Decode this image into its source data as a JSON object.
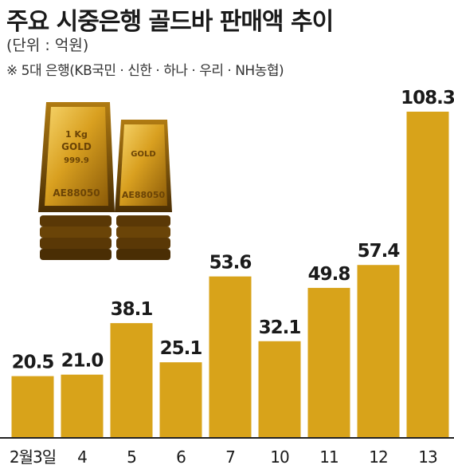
{
  "header": {
    "title": "주요 시중은행 골드바 판매액 추이",
    "unit": "(단위 : 억원)",
    "note": "※ 5대 은행(KB국민 · 신한 · 하나 · 우리 · NH농협)"
  },
  "colors": {
    "bar": "#D8A31A",
    "baseline": "#222222",
    "text": "#1a1a1a"
  },
  "illustration": {
    "icon": "gold-bars-icon",
    "bar_engraving": [
      "AE88050",
      "1 Kg",
      "GOLD",
      "999.9"
    ]
  },
  "chart_data": {
    "type": "bar",
    "title": "주요 시중은행 골드바 판매액 추이",
    "xlabel": "",
    "ylabel": "",
    "categories": [
      "2월3일",
      "4",
      "5",
      "6",
      "7",
      "10",
      "11",
      "12",
      "13"
    ],
    "values": [
      20.5,
      21.0,
      38.1,
      25.1,
      53.6,
      32.1,
      49.8,
      57.4,
      108.3
    ],
    "value_labels": [
      "20.5",
      "21.0",
      "38.1",
      "25.1",
      "53.6",
      "32.1",
      "49.8",
      "57.4",
      "108.3"
    ],
    "ylim": [
      0,
      108.3
    ],
    "grid": false,
    "legend": "none"
  }
}
